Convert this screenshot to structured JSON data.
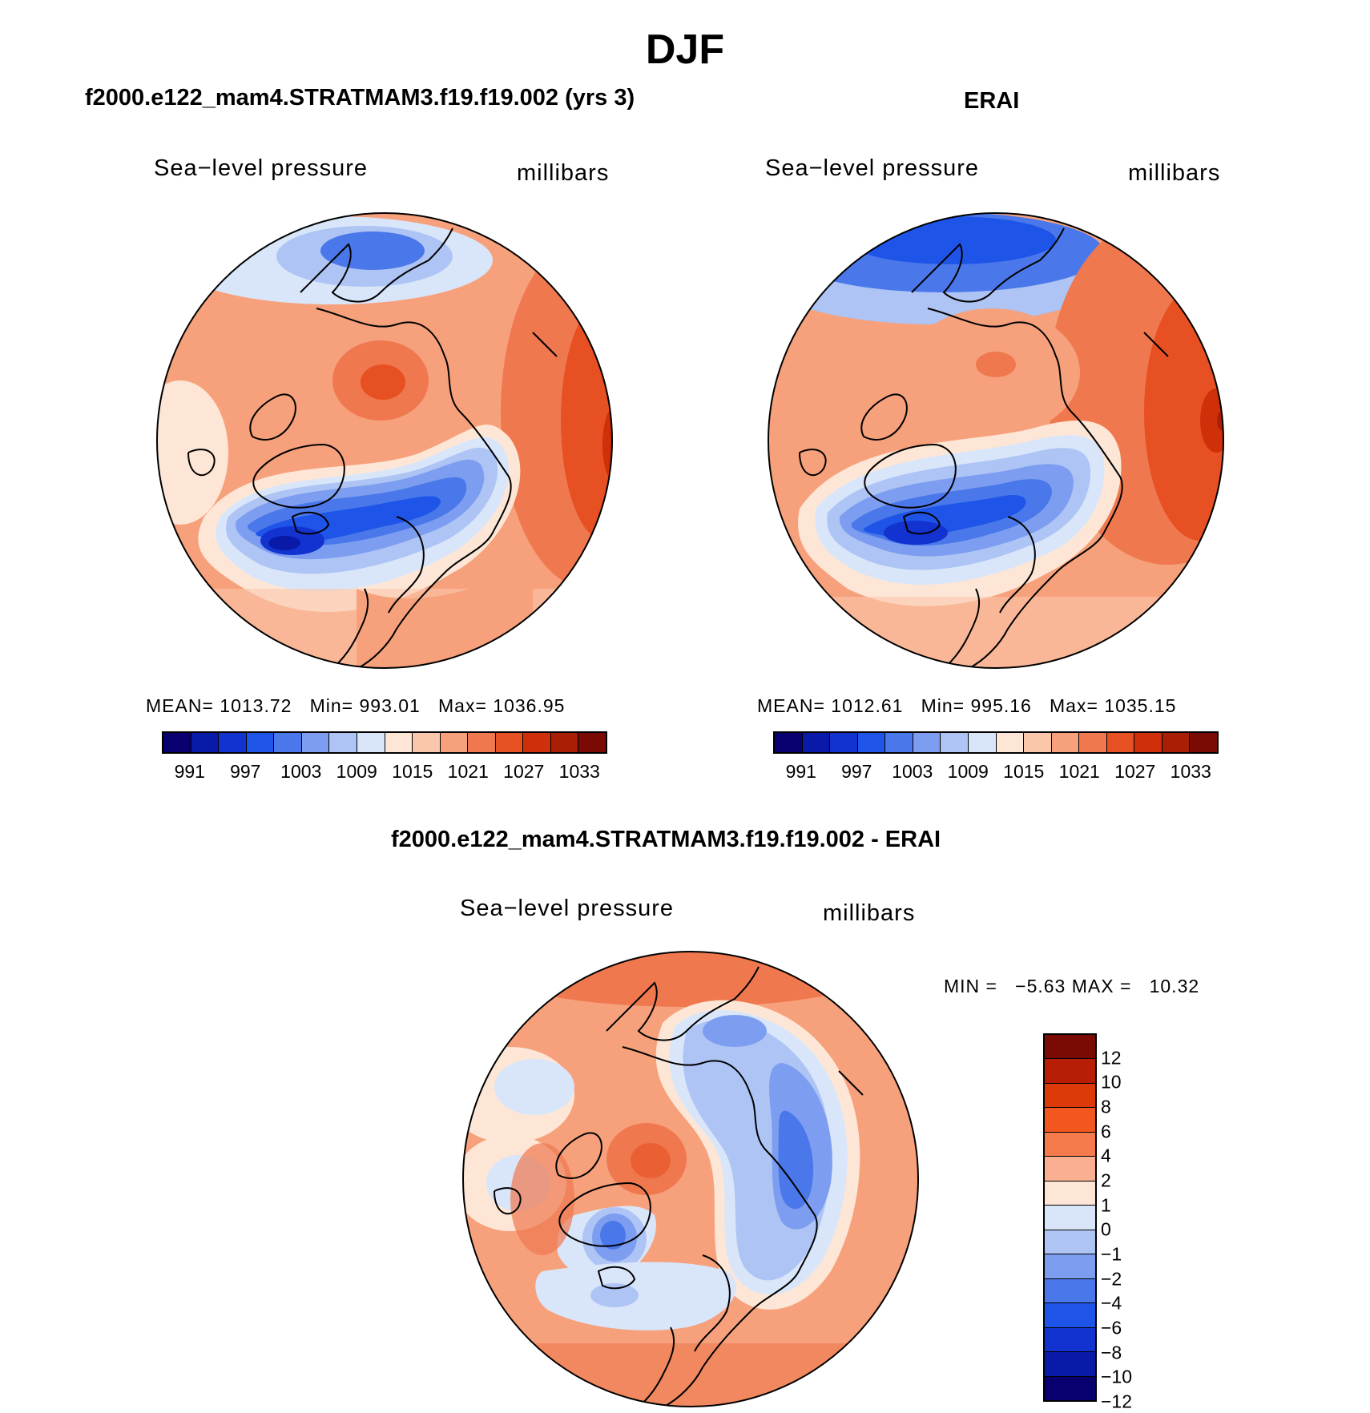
{
  "figure": {
    "title": "DJF"
  },
  "panels": [
    {
      "title": "f2000.e122_mam4.STRATMAM3.f19.f19.002 (yrs 3)",
      "field_label": "Sea−level pressure",
      "units_label": "millibars",
      "stats": {
        "mean_label": "MEAN=",
        "mean": "1013.72",
        "min_label": "Min=",
        "min": "993.01",
        "max_label": "Max=",
        "max": "1036.95"
      },
      "colorbar_ticks": [
        "991",
        "997",
        "1003",
        "1009",
        "1015",
        "1021",
        "1027",
        "1033"
      ]
    },
    {
      "title": "ERAI",
      "field_label": "Sea−level pressure",
      "units_label": "millibars",
      "stats": {
        "mean_label": "MEAN=",
        "mean": "1012.61",
        "min_label": "Min=",
        "min": "995.16",
        "max_label": "Max=",
        "max": "1035.15"
      },
      "colorbar_ticks": [
        "991",
        "997",
        "1003",
        "1009",
        "1015",
        "1021",
        "1027",
        "1033"
      ]
    },
    {
      "title": "f2000.e122_mam4.STRATMAM3.f19.f19.002 - ERAI",
      "field_label": "Sea−level pressure",
      "units_label": "millibars",
      "stats": {
        "min_label": "MIN =",
        "min": "−5.63",
        "max_label": "MAX =",
        "max": "10.32"
      },
      "colorbar_ticks": [
        "12",
        "10",
        "8",
        "6",
        "4",
        "2",
        "1",
        "0",
        "−1",
        "−2",
        "−4",
        "−6",
        "−8",
        "−10",
        "−12"
      ]
    }
  ],
  "colors": {
    "slp_scale": [
      "#08006e",
      "#0a1aa8",
      "#1233d0",
      "#1e55e8",
      "#4a78ea",
      "#7d9ef0",
      "#aec4f5",
      "#d9e6fa",
      "#fde6d6",
      "#fbc7ab",
      "#f6a17c",
      "#f0784f",
      "#e65022",
      "#cf3009",
      "#a91f05",
      "#7a0a04"
    ],
    "diff_scale": [
      "#7a0a04",
      "#b81d06",
      "#dc3a08",
      "#f25720",
      "#f57b4d",
      "#fab090",
      "#fde6d6",
      "#d9e6fa",
      "#aec4f5",
      "#7d9ef0",
      "#4a78ea",
      "#1e55e8",
      "#1233d0",
      "#0a1aa8",
      "#08006e"
    ],
    "coastline": "#000000"
  }
}
